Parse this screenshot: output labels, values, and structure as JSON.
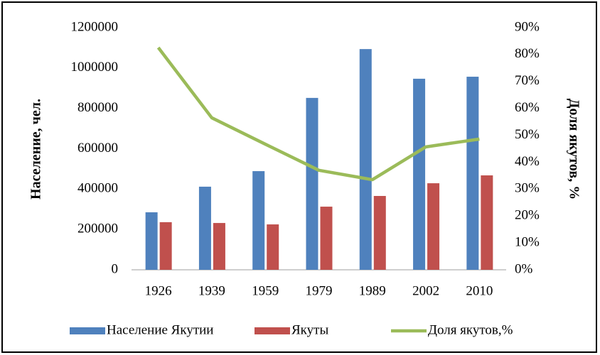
{
  "chart_data": {
    "type": "bar_line",
    "categories": [
      "1926",
      "1939",
      "1959",
      "1979",
      "1989",
      "2002",
      "2010"
    ],
    "series": [
      {
        "name": "Население Якутии",
        "color": "#4f81bd",
        "type": "bar",
        "values": [
          285000,
          412000,
          489000,
          852000,
          1094000,
          947000,
          957000
        ]
      },
      {
        "name": "Якуты",
        "color": "#c0504d",
        "type": "bar",
        "values": [
          236000,
          232000,
          225000,
          313000,
          366000,
          429000,
          468000
        ]
      },
      {
        "name": "Доля якутов,%",
        "color": "#9bbb59",
        "type": "line",
        "axis": "y2",
        "values": [
          82.6,
          56.5,
          46.7,
          37,
          33.5,
          45.7,
          48.6
        ]
      }
    ],
    "ylabel": "Население, чел.",
    "y2label": "Доля якутов, %",
    "ylim": [
      0,
      1200000
    ],
    "yticks": [
      0,
      200000,
      400000,
      600000,
      800000,
      1000000,
      1200000
    ],
    "y2lim": [
      0,
      90
    ],
    "y2ticks": [
      {
        "value": 0,
        "label": "0%"
      },
      {
        "value": 10,
        "label": "10%"
      },
      {
        "value": 20,
        "label": "20%"
      },
      {
        "value": 30,
        "label": "30%"
      },
      {
        "value": 40,
        "label": "40%"
      },
      {
        "value": 50,
        "label": "50%"
      },
      {
        "value": 60,
        "label": "60%"
      },
      {
        "value": 70,
        "label": "70%"
      },
      {
        "value": 80,
        "label": "80%"
      },
      {
        "value": 90,
        "label": "90%"
      }
    ],
    "legend": "bottom"
  }
}
